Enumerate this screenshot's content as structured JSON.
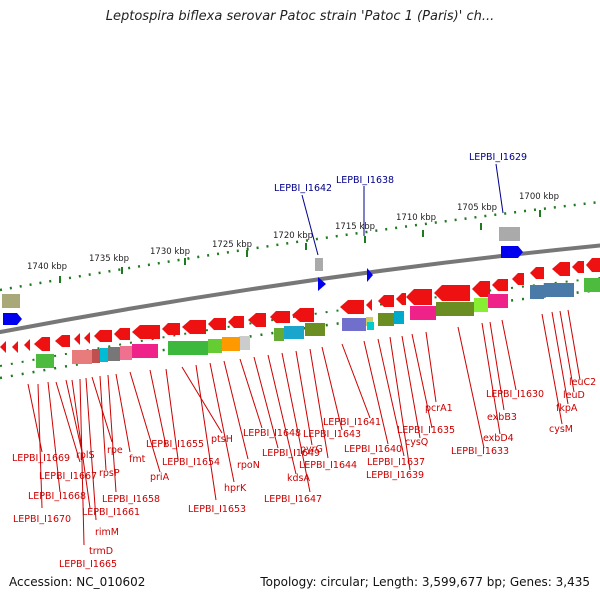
{
  "header": {
    "title": "Leptospira biflexa serovar Patoc strain 'Patoc 1 (Paris)' ch..."
  },
  "footer": {
    "accession": "Accession: NC_010602",
    "summary": "Topology: circular; Length: 3,599,677 bp; Genes: 3,435"
  },
  "colors": {
    "gene_label": "#cc0000",
    "feature_label": "#00008b",
    "backbone": "#777777",
    "scale": "#1f7a1f"
  },
  "scale": {
    "ticks": [
      {
        "label": "1740 kbp"
      },
      {
        "label": "1735 kbp"
      },
      {
        "label": "1730 kbp"
      },
      {
        "label": "1725 kbp"
      },
      {
        "label": "1720 kbp"
      },
      {
        "label": "1715 kbp"
      },
      {
        "label": "1710 kbp"
      },
      {
        "label": "1705 kbp"
      },
      {
        "label": "1700 kbp"
      }
    ]
  },
  "top_features": [
    {
      "name": "LEPBI_I1642"
    },
    {
      "name": "LEPBI_I1638"
    },
    {
      "name": "LEPBI_I1629"
    }
  ],
  "gene_labels": [
    {
      "name": "LEPBI_I1669"
    },
    {
      "name": "rplS"
    },
    {
      "name": "LEPBI_I1667"
    },
    {
      "name": "LEPBI_I1668"
    },
    {
      "name": "rpe"
    },
    {
      "name": "rpsP"
    },
    {
      "name": "LEPBI_I1670"
    },
    {
      "name": "fmt"
    },
    {
      "name": "LEPBI_I1658"
    },
    {
      "name": "LEPBI_I1661"
    },
    {
      "name": "rimM"
    },
    {
      "name": "trmD"
    },
    {
      "name": "LEPBI_I1665"
    },
    {
      "name": "LEPBI_I1655"
    },
    {
      "name": "priA"
    },
    {
      "name": "LEPBI_I1654"
    },
    {
      "name": "ptsH"
    },
    {
      "name": "LEPBI_I1653"
    },
    {
      "name": "hprK"
    },
    {
      "name": "rpoN"
    },
    {
      "name": "LEPBI_I1648"
    },
    {
      "name": "LEPBI_I1649"
    },
    {
      "name": "kdsA"
    },
    {
      "name": "LEPBI_I1647"
    },
    {
      "name": "pyrG"
    },
    {
      "name": "LEPBI_I1644"
    },
    {
      "name": "LEPBI_I1643"
    },
    {
      "name": "LEPBI_I1641"
    },
    {
      "name": "LEPBI_I1640"
    },
    {
      "name": "LEPBI_I1637"
    },
    {
      "name": "LEPBI_I1639"
    },
    {
      "name": "cysQ"
    },
    {
      "name": "LEPBI_I1635"
    },
    {
      "name": "pcrA1"
    },
    {
      "name": "LEPBI_I1633"
    },
    {
      "name": "exbD4"
    },
    {
      "name": "exbB3"
    },
    {
      "name": "LEPBI_I1630"
    },
    {
      "name": "fkpA"
    },
    {
      "name": "cysM"
    },
    {
      "name": "leuD"
    },
    {
      "name": "leuC2"
    }
  ]
}
